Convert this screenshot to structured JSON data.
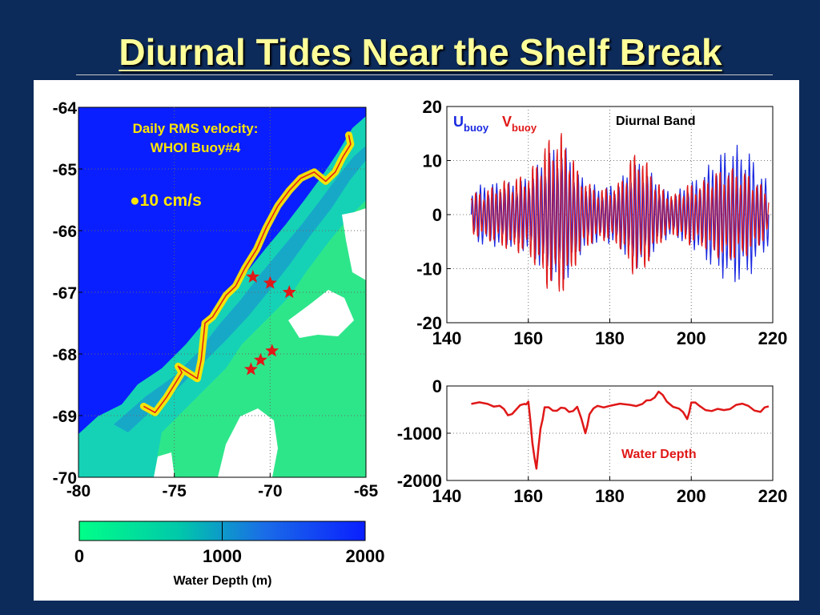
{
  "slide": {
    "title": "Diurnal Tides Near the Shelf Break"
  },
  "colors": {
    "background": "#0d2b5a",
    "title": "#ffff99",
    "u_series": "#1a28e0",
    "v_series": "#e01818",
    "deep_water": "#0a1fff",
    "shallow_water": "#00ff88",
    "track": "#ffe600",
    "star": "#e01818"
  },
  "map": {
    "annotation_line1": "Daily RMS velocity:",
    "annotation_line2": "WHOI Buoy#4",
    "scale_label": "●10 cm/s",
    "colorbar_label": "Water Depth (m)"
  },
  "chart_data": [
    {
      "type": "heatmap",
      "name_hint": "map",
      "xlim": [
        -80,
        -65
      ],
      "ylim": [
        -70,
        -64
      ],
      "x_ticks": [
        "-80",
        "-75",
        "-70",
        "-65"
      ],
      "y_ticks": [
        "-64",
        "-65",
        "-66",
        "-67",
        "-68",
        "-69",
        "-70"
      ],
      "colorbar": {
        "range": [
          0,
          2000
        ],
        "ticks": [
          "0",
          "1000",
          "2000"
        ],
        "label": "Water Depth (m)"
      },
      "stations": [
        {
          "x": -70.9,
          "y": -66.75
        },
        {
          "x": -70.0,
          "y": -66.85
        },
        {
          "x": -69.0,
          "y": -67.0
        },
        {
          "x": -69.9,
          "y": -67.95
        },
        {
          "x": -70.5,
          "y": -68.1
        },
        {
          "x": -71.0,
          "y": -68.25
        }
      ],
      "track": [
        [
          -76.6,
          -68.85
        ],
        [
          -76.0,
          -68.95
        ],
        [
          -75.4,
          -68.7
        ],
        [
          -74.9,
          -68.45
        ],
        [
          -74.6,
          -68.3
        ],
        [
          -74.8,
          -68.2
        ],
        [
          -74.3,
          -68.3
        ],
        [
          -73.8,
          -68.4
        ],
        [
          -73.6,
          -68.1
        ],
        [
          -73.5,
          -67.8
        ],
        [
          -73.4,
          -67.5
        ],
        [
          -73.0,
          -67.4
        ],
        [
          -72.6,
          -67.2
        ],
        [
          -72.3,
          -67.05
        ],
        [
          -71.8,
          -66.9
        ],
        [
          -71.3,
          -66.6
        ],
        [
          -70.7,
          -66.3
        ],
        [
          -70.2,
          -65.95
        ],
        [
          -69.6,
          -65.6
        ],
        [
          -69.0,
          -65.35
        ],
        [
          -68.4,
          -65.15
        ],
        [
          -67.7,
          -65.05
        ],
        [
          -67.1,
          -65.2
        ],
        [
          -66.6,
          -65.05
        ],
        [
          -66.2,
          -64.8
        ],
        [
          -65.8,
          -64.6
        ],
        [
          -65.9,
          -64.45
        ]
      ]
    },
    {
      "type": "line",
      "title": "Diurnal Band",
      "xlim": [
        140,
        220
      ],
      "ylim": [
        -20,
        20
      ],
      "x_ticks": [
        "140",
        "160",
        "180",
        "200",
        "220"
      ],
      "y_ticks": [
        "20",
        "10",
        "0",
        "-10",
        "-20"
      ],
      "series": [
        {
          "name": "U",
          "subscript": "buoy",
          "color": "#1a28e0",
          "envelope": [
            [
              146,
              5
            ],
            [
              150,
              6
            ],
            [
              155,
              6
            ],
            [
              160,
              7
            ],
            [
              163,
              10
            ],
            [
              165,
              12
            ],
            [
              168,
              13
            ],
            [
              170,
              12
            ],
            [
              172,
              8
            ],
            [
              175,
              6
            ],
            [
              178,
              5
            ],
            [
              182,
              6
            ],
            [
              185,
              9
            ],
            [
              187,
              10
            ],
            [
              190,
              8
            ],
            [
              193,
              5
            ],
            [
              196,
              4
            ],
            [
              199,
              6
            ],
            [
              202,
              7
            ],
            [
              205,
              10
            ],
            [
              208,
              12
            ],
            [
              211,
              13
            ],
            [
              214,
              12
            ],
            [
              217,
              8
            ],
            [
              219,
              6
            ]
          ]
        },
        {
          "name": "V",
          "subscript": "buoy",
          "color": "#e01818",
          "envelope": [
            [
              146,
              4
            ],
            [
              150,
              5
            ],
            [
              155,
              7
            ],
            [
              160,
              8
            ],
            [
              163,
              12
            ],
            [
              165,
              15
            ],
            [
              168,
              16
            ],
            [
              170,
              14
            ],
            [
              172,
              9
            ],
            [
              175,
              6
            ],
            [
              178,
              5
            ],
            [
              182,
              6
            ],
            [
              185,
              11
            ],
            [
              187,
              13
            ],
            [
              190,
              9
            ],
            [
              193,
              5
            ],
            [
              196,
              4
            ],
            [
              199,
              6
            ],
            [
              202,
              6
            ],
            [
              205,
              8
            ],
            [
              208,
              9
            ],
            [
              211,
              9
            ],
            [
              214,
              8
            ],
            [
              217,
              6
            ],
            [
              219,
              4
            ]
          ]
        }
      ]
    },
    {
      "type": "line",
      "title": "Water Depth",
      "xlim": [
        140,
        220
      ],
      "ylim": [
        -2000,
        0
      ],
      "x_ticks": [
        "140",
        "160",
        "180",
        "200",
        "220"
      ],
      "y_ticks": [
        "0",
        "-1000",
        "-2000"
      ],
      "series": [
        {
          "name": "Water Depth",
          "color": "#e01818",
          "x": [
            146,
            150,
            153,
            155,
            157,
            159,
            160,
            161,
            162,
            163,
            164,
            166,
            168,
            170,
            172,
            174,
            175,
            177,
            180,
            185,
            188,
            190,
            192,
            194,
            197,
            199,
            200,
            202,
            205,
            208,
            211,
            214,
            217,
            219
          ],
          "y": [
            -380,
            -380,
            -420,
            -620,
            -500,
            -380,
            -330,
            -1200,
            -1750,
            -900,
            -450,
            -520,
            -460,
            -550,
            -440,
            -1000,
            -600,
            -420,
            -420,
            -400,
            -380,
            -300,
            -120,
            -330,
            -480,
            -700,
            -350,
            -420,
            -530,
            -510,
            -400,
            -420,
            -550,
            -430
          ]
        }
      ]
    }
  ]
}
